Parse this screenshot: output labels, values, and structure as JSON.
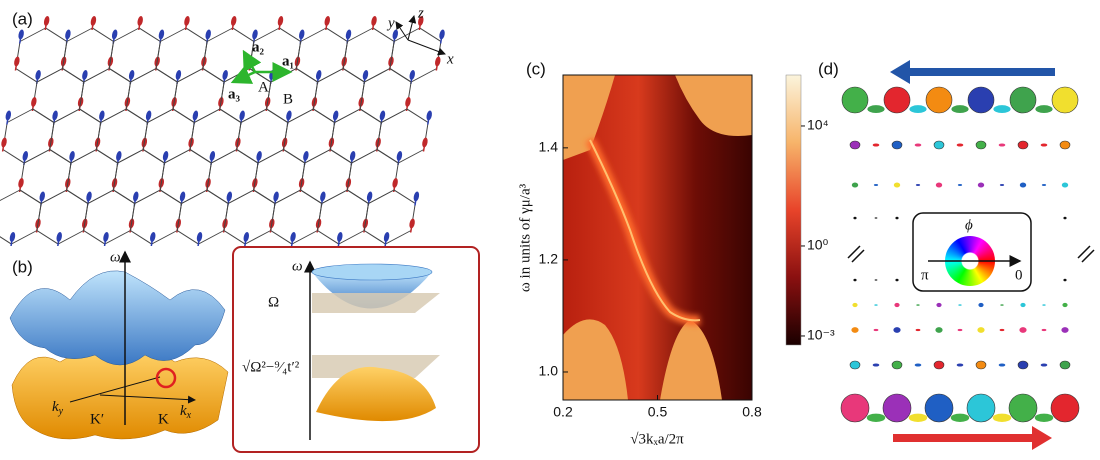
{
  "panel_a": {
    "label": "(a)",
    "vectors": [
      "a₁",
      "a₂",
      "a₃"
    ],
    "sites": [
      "A",
      "B"
    ],
    "axes": [
      "x",
      "y",
      "z"
    ]
  },
  "panel_b": {
    "label": "(b)",
    "omega": "ω",
    "ky": {
      "base": "k",
      "sub": "y"
    },
    "kx": {
      "base": "k",
      "sub": "x"
    },
    "valleys": [
      "K′",
      "K"
    ],
    "inset": {
      "omega": "ω",
      "upper_plane": "Ω",
      "lower_plane": "√Ω²−⁹⁄₄t′²"
    }
  },
  "panel_d": {
    "label": "(d)",
    "wheel": {
      "symbol": "ϕ",
      "left": "π",
      "right": "0"
    }
  },
  "chart_data": {
    "type": "heatmap",
    "label": "(c)",
    "xlabel": "√3kₓa/2π",
    "ylabel": "ω in units of γμ/a³",
    "xlim": [
      0.2,
      0.8
    ],
    "xticks": [
      0.2,
      0.5,
      0.8
    ],
    "ylim": [
      0.95,
      1.53
    ],
    "yticks": [
      {
        "value": 1,
        "label": "1.0"
      },
      1.2,
      1.4
    ],
    "colorbar": {
      "scale": "log",
      "lim": [
        0.0005,
        500000
      ],
      "ticks": [
        {
          "value": 10000,
          "label": "10⁴"
        },
        {
          "value": 1,
          "label": "10⁰"
        },
        {
          "value": 0.001,
          "label": "10⁻³"
        }
      ]
    }
  }
}
